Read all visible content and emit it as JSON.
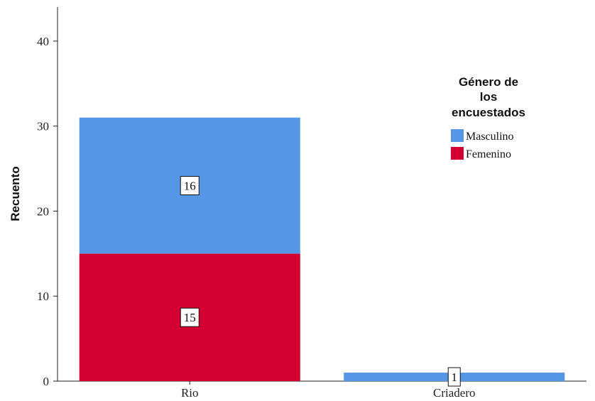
{
  "chart_data": {
    "type": "bar",
    "stacked": true,
    "categories": [
      "Rio",
      "Criadero"
    ],
    "ylabel": "Recuento",
    "ylim": [
      0,
      44
    ],
    "yticks": [
      0,
      10,
      20,
      30,
      40
    ],
    "legend": {
      "title_lines": [
        "Género de",
        "los",
        "encuestados"
      ],
      "placement": "top-right"
    },
    "series": [
      {
        "name": "Femenino",
        "color": "#D50032",
        "values": [
          15,
          0
        ]
      },
      {
        "name": "Masculino",
        "color": "#5596E6",
        "values": [
          16,
          1
        ]
      }
    ],
    "data_labels": [
      {
        "category": "Rio",
        "series": "Masculino",
        "text": "16"
      },
      {
        "category": "Rio",
        "series": "Femenino",
        "text": "15"
      },
      {
        "category": "Criadero",
        "series": "Masculino",
        "text": "1"
      }
    ]
  }
}
